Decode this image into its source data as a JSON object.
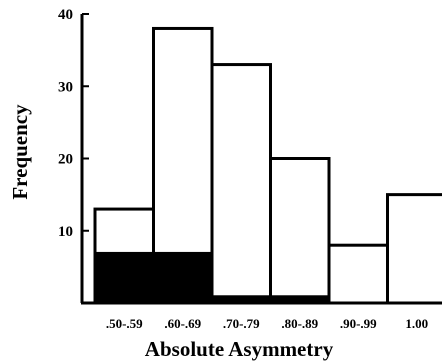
{
  "chart_data": {
    "type": "bar",
    "categories": [
      ".50-.59",
      ".60-.69",
      ".70-.79",
      ".80-.89",
      ".90-.99",
      "1.00"
    ],
    "series": [
      {
        "values": [
          13,
          38,
          33,
          20,
          8,
          15
        ]
      },
      {
        "values": [
          7,
          7,
          1,
          1,
          0,
          0
        ]
      }
    ],
    "xlabel": "Absolute Asymmetry",
    "ylabel": "Frequency",
    "ylim": [
      0,
      40
    ],
    "yticks": [
      10,
      20,
      30,
      40
    ],
    "grid": false,
    "colors": {
      "outline": "#000000",
      "total_fill": "#ffffff",
      "subset_fill": "#000000"
    }
  }
}
